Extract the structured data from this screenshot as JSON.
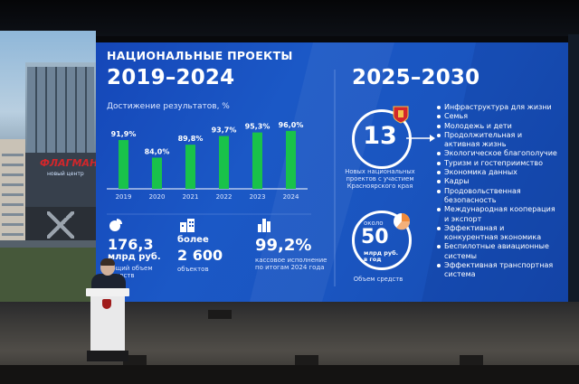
{
  "slide": {
    "header": "НАЦИОНАЛЬНЫЕ ПРОЕКТЫ",
    "years_left": "2019–2024",
    "years_right": "2025–2030"
  },
  "chart_data": {
    "type": "bar",
    "title": "Достижение результатов, %",
    "categories": [
      "2019",
      "2020",
      "2021",
      "2022",
      "2023",
      "2024"
    ],
    "values": [
      91.9,
      84.0,
      89.8,
      93.7,
      95.3,
      96.0
    ],
    "data_labels": [
      "91,9%",
      "84,0%",
      "89,8%",
      "93,7%",
      "95,3%",
      "96,0%"
    ],
    "xlabel": "",
    "ylabel": "",
    "ylim": [
      70,
      100
    ],
    "grid": false,
    "bar_color": "#19c24a"
  },
  "stats": [
    {
      "icon": "pie-chart-icon",
      "value": "176,3",
      "unit": "млрд руб.",
      "caption": "общий объем средств"
    },
    {
      "icon": "buildings-icon",
      "value": "более\n2 600",
      "caption": "объектов"
    },
    {
      "icon": "bar-chart-icon",
      "value": "99,2%",
      "caption": "кассовое исполнение по итогам 2024 года"
    }
  ],
  "projects": {
    "count": "13",
    "caption": "Новых национальных проектов с участием Красноярского края",
    "emblem": "krasnoyarsk-coat-of-arms-icon",
    "items": [
      "Инфраструктура для жизни",
      "Семья",
      "Молодежь и дети",
      "Продолжительная и активная жизнь",
      "Экологическое благополучие",
      "Туризм и гостеприимство",
      "Экономика данных",
      "Кадры",
      "Продовольственная безопасность",
      "Международная кооперация и экспорт",
      "Эффективная и конкурентная экономика",
      "Беспилотные авиационные системы",
      "Эффективная транспортная система"
    ]
  },
  "funding": {
    "prefix": "около",
    "value": "50",
    "unit": "млрд руб. в год",
    "caption": "Объем средств"
  },
  "background": {
    "building_sign": "ФЛАГМАН",
    "building_sign_sub": "новый центр"
  },
  "colors": {
    "screen_blue": "#1a55c0",
    "bar_green": "#19c24a",
    "sign_red": "#d3262b",
    "accent_orange": "#f08a3a"
  }
}
